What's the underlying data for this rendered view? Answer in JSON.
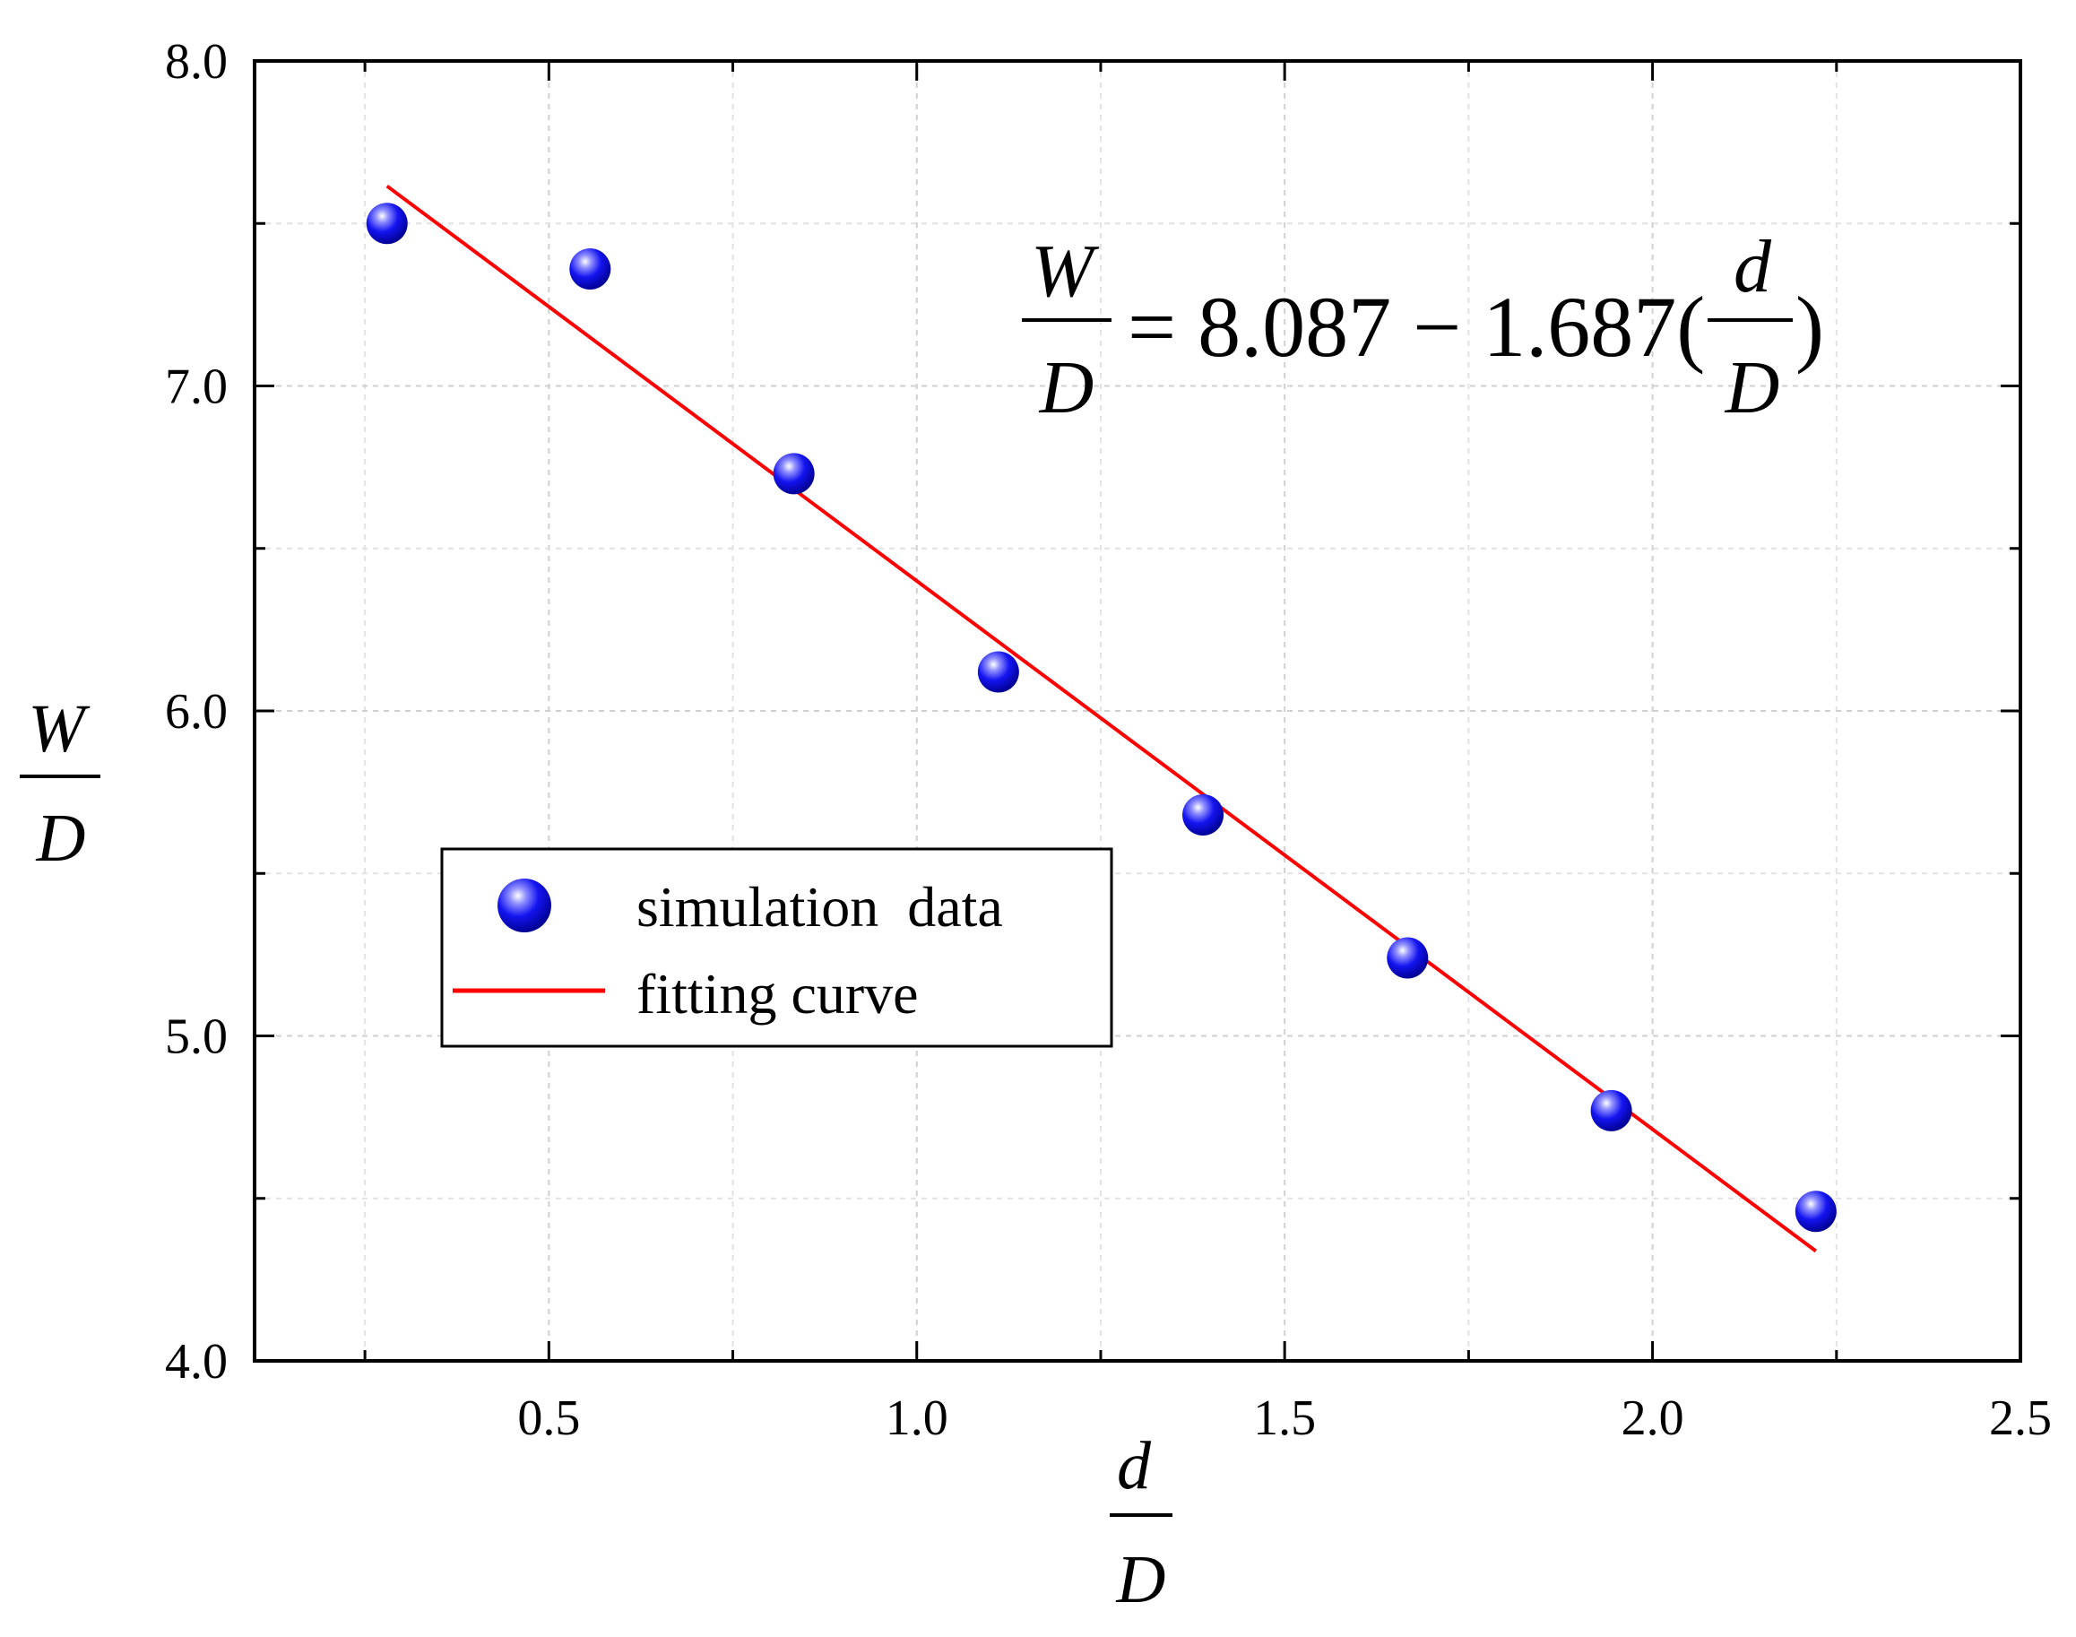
{
  "chart_data": {
    "type": "scatter",
    "x_axis": {
      "label_numerator": "d",
      "label_denominator": "D",
      "range": [
        0.1,
        2.5
      ],
      "ticks": [
        0.5,
        1.0,
        1.5,
        2.0,
        2.5
      ],
      "tick_labels": [
        "0.5",
        "1.0",
        "1.5",
        "2.0",
        "2.5"
      ],
      "minor_ticks": [
        0.25,
        0.75,
        1.25,
        1.75,
        2.25
      ]
    },
    "y_axis": {
      "label_numerator": "W",
      "label_denominator": "D",
      "range": [
        4.0,
        8.0
      ],
      "ticks": [
        4.0,
        5.0,
        6.0,
        7.0,
        8.0
      ],
      "tick_labels": [
        "4.0",
        "5.0",
        "6.0",
        "7.0",
        "8.0"
      ],
      "minor_ticks": [
        4.5,
        5.5,
        6.5,
        7.5
      ]
    },
    "grid": true,
    "series": [
      {
        "name": "simulation  data",
        "kind": "scatter",
        "color": "#0000ff",
        "x": [
          0.28,
          0.556,
          0.833,
          1.111,
          1.389,
          1.667,
          1.944,
          2.222
        ],
        "y": [
          7.5,
          7.36,
          6.73,
          6.12,
          5.68,
          5.24,
          4.77,
          4.46
        ]
      },
      {
        "name": "fitting curve",
        "kind": "line",
        "color": "#ff0000",
        "x": [
          0.28,
          2.222
        ],
        "y": [
          7.615,
          4.338
        ]
      }
    ],
    "equation": {
      "lhs_numerator": "W",
      "lhs_denominator": "D",
      "middle": "= 8.087 − 1.687(",
      "rhs_numerator": "d",
      "rhs_denominator": "D",
      "close": ")"
    },
    "legend_position": "center-left"
  }
}
